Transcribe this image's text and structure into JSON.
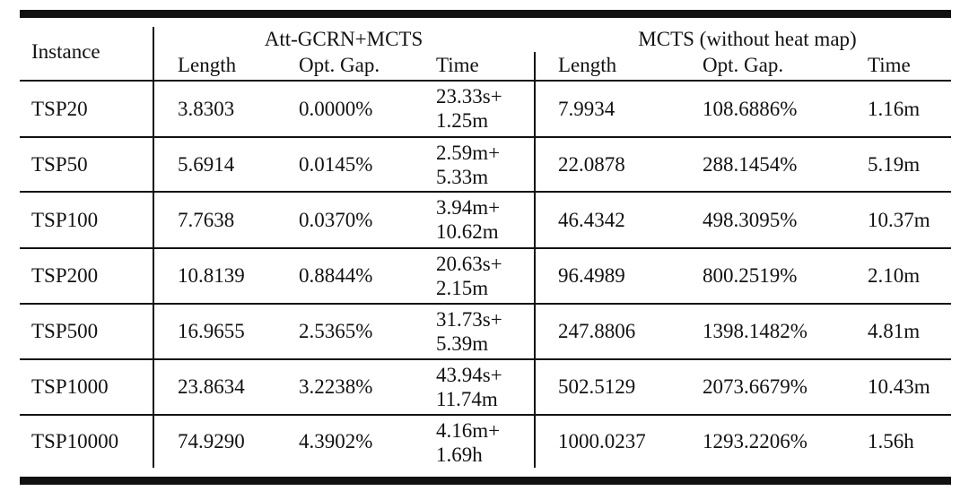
{
  "table": {
    "header": {
      "instance": "Instance",
      "group_a": "Att-GCRN+MCTS",
      "group_b": "MCTS (without heat map)",
      "columns_a": [
        "Length",
        "Opt. Gap.",
        "Time"
      ],
      "columns_b": [
        "Length",
        "Opt. Gap.",
        "Time"
      ]
    },
    "rows": [
      {
        "instance": "TSP20",
        "a_length": "3.8303",
        "a_gap": "0.0000%",
        "a_time": [
          "23.33s+",
          "1.25m"
        ],
        "b_length": "7.9934",
        "b_gap": "108.6886%",
        "b_time": "1.16m"
      },
      {
        "instance": "TSP50",
        "a_length": "5.6914",
        "a_gap": "0.0145%",
        "a_time": [
          "2.59m+",
          "5.33m"
        ],
        "b_length": "22.0878",
        "b_gap": "288.1454%",
        "b_time": "5.19m"
      },
      {
        "instance": "TSP100",
        "a_length": "7.7638",
        "a_gap": "0.0370%",
        "a_time": [
          "3.94m+",
          "10.62m"
        ],
        "b_length": "46.4342",
        "b_gap": "498.3095%",
        "b_time": "10.37m"
      },
      {
        "instance": "TSP200",
        "a_length": "10.8139",
        "a_gap": "0.8844%",
        "a_time": [
          "20.63s+",
          "2.15m"
        ],
        "b_length": "96.4989",
        "b_gap": "800.2519%",
        "b_time": "2.10m"
      },
      {
        "instance": "TSP500",
        "a_length": "16.9655",
        "a_gap": "2.5365%",
        "a_time": [
          "31.73s+",
          "5.39m"
        ],
        "b_length": "247.8806",
        "b_gap": "1398.1482%",
        "b_time": "4.81m"
      },
      {
        "instance": "TSP1000",
        "a_length": "23.8634",
        "a_gap": "3.2238%",
        "a_time": [
          "43.94s+",
          "11.74m"
        ],
        "b_length": "502.5129",
        "b_gap": "2073.6679%",
        "b_time": "10.43m"
      },
      {
        "instance": "TSP10000",
        "a_length": "74.9290",
        "a_gap": "4.3902%",
        "a_time": [
          "4.16m+",
          "1.69h"
        ],
        "b_length": "1000.0237",
        "b_gap": "1293.2206%",
        "b_time": "1.56h"
      }
    ]
  }
}
